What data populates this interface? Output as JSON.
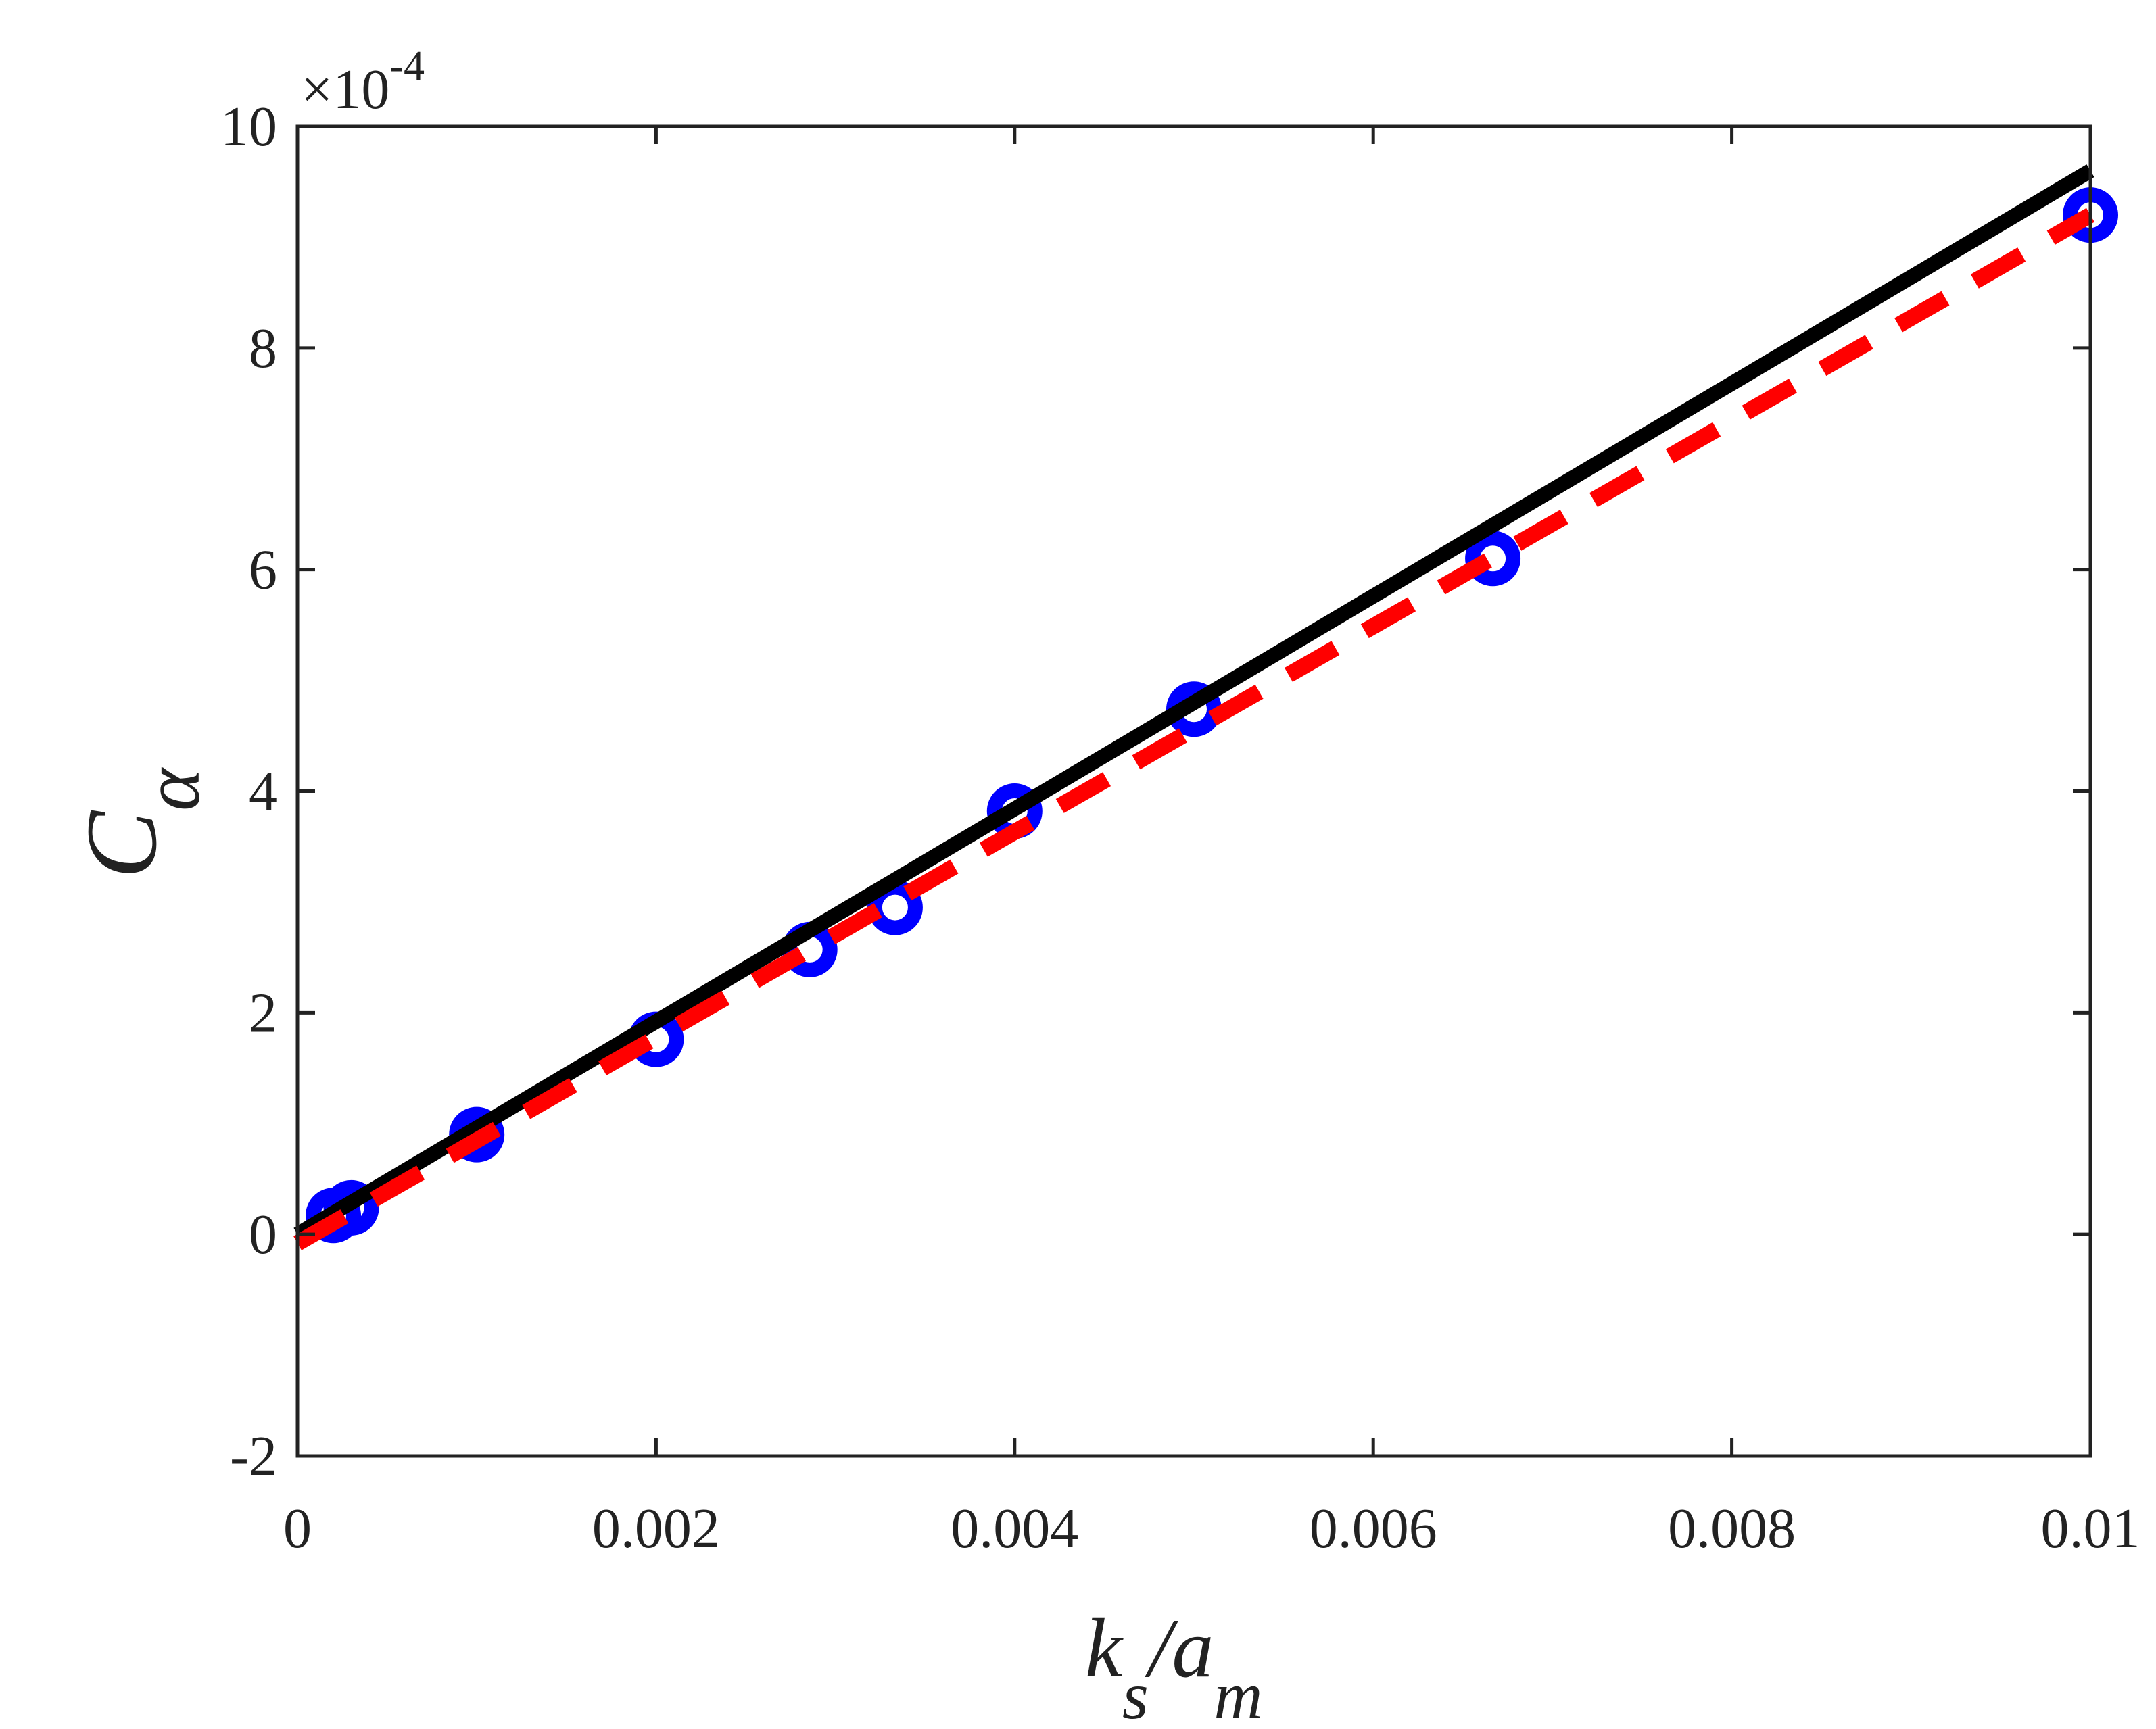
{
  "chart_data": {
    "type": "scatter",
    "title": "",
    "xlabel": {
      "main": "k",
      "sub": "s",
      "sep": "/a",
      "sub2": "m"
    },
    "ylabel": {
      "main": "C",
      "sub": "α"
    },
    "y_exponent_label": "×10",
    "y_exponent_power": "-4",
    "xlim": [
      0,
      0.01
    ],
    "ylim": [
      -2,
      10
    ],
    "xticks": [
      0,
      0.002,
      0.004,
      0.006,
      0.008,
      0.01
    ],
    "xtick_labels": [
      "0",
      "0.002",
      "0.004",
      "0.006",
      "0.008",
      "0.01"
    ],
    "yticks": [
      -2,
      0,
      2,
      4,
      6,
      8,
      10
    ],
    "ytick_labels": [
      "-2",
      "0",
      "2",
      "4",
      "6",
      "8",
      "10"
    ],
    "grid": false,
    "series": [
      {
        "kind": "markers",
        "marker": "circle",
        "color": "#0000ff",
        "x": [
          0.0002,
          0.0003,
          0.001,
          0.002,
          0.002857,
          0.003333,
          0.004,
          0.005,
          0.006667,
          0.01
        ],
        "y": [
          0.17,
          0.24,
          0.9,
          1.76,
          2.57,
          2.95,
          3.82,
          4.74,
          6.1,
          9.2
        ]
      },
      {
        "kind": "line",
        "style": "solid",
        "color": "#000000",
        "x": [
          0,
          0.01
        ],
        "y": [
          0.0,
          9.6
        ]
      },
      {
        "kind": "line",
        "style": "dashed",
        "color": "#ff0000",
        "x": [
          0,
          0.01
        ],
        "y": [
          -0.08,
          9.2
        ]
      }
    ]
  }
}
